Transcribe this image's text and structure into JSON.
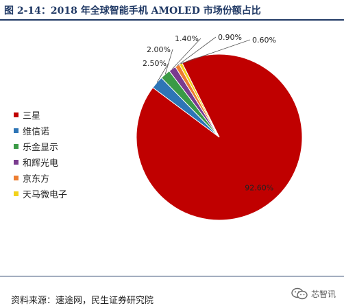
{
  "header": {
    "title": "图 2-14：2018 年全球智能手机 AMOLED 市场份额占比"
  },
  "chart_data": {
    "type": "pie",
    "title": "",
    "categories": [
      "三星",
      "维信诺",
      "乐金显示",
      "和辉光电",
      "京东方",
      "天马微电子"
    ],
    "values": [
      92.6,
      2.5,
      2.0,
      1.4,
      0.9,
      0.6
    ],
    "labels": [
      "92.60%",
      "2.50%",
      "2.00%",
      "1.40%",
      "0.90%",
      "0.60%"
    ],
    "colors": [
      "#c00000",
      "#2e75b6",
      "#3a9a46",
      "#7a3b8f",
      "#ed7d31",
      "#f2d21b"
    ],
    "legend_position": "left"
  },
  "footer": {
    "source": "资料来源：速途网，民生证券研究院",
    "watermark_text": "芯智讯",
    "watermark_icon": "wechat-icon"
  }
}
